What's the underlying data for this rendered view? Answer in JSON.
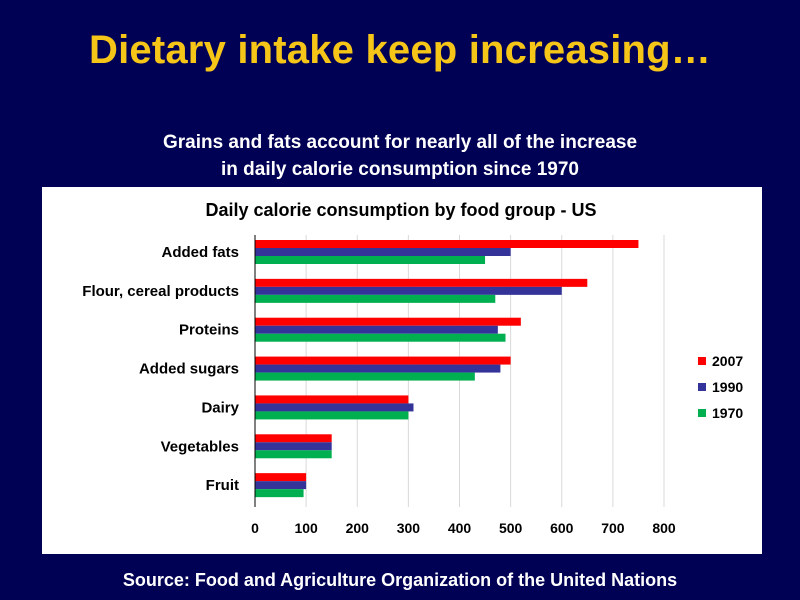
{
  "slide": {
    "title": "Dietary intake keep increasing…",
    "subtitle_line1": "Grains and fats account for nearly all of the increase",
    "subtitle_line2": "in daily calorie consumption since 1970",
    "source": "Source: Food and Agriculture Organization of the United Nations"
  },
  "chart_data": {
    "type": "bar",
    "orientation": "horizontal",
    "title": "Daily calorie consumption by food group - US",
    "categories": [
      "Added fats",
      "Flour, cereal products",
      "Proteins",
      "Added sugars",
      "Dairy",
      "Vegetables",
      "Fruit"
    ],
    "series": [
      {
        "name": "2007",
        "color": "#ff0000",
        "values": [
          750,
          650,
          520,
          500,
          300,
          150,
          100
        ]
      },
      {
        "name": "1990",
        "color": "#333399",
        "values": [
          500,
          600,
          475,
          480,
          310,
          150,
          100
        ]
      },
      {
        "name": "1970",
        "color": "#00b050",
        "values": [
          450,
          470,
          490,
          430,
          300,
          150,
          95
        ]
      }
    ],
    "xlim": [
      0,
      800
    ],
    "xticks": [
      0,
      100,
      200,
      300,
      400,
      500,
      600,
      700,
      800
    ],
    "grid": true,
    "legend_position": "right"
  }
}
